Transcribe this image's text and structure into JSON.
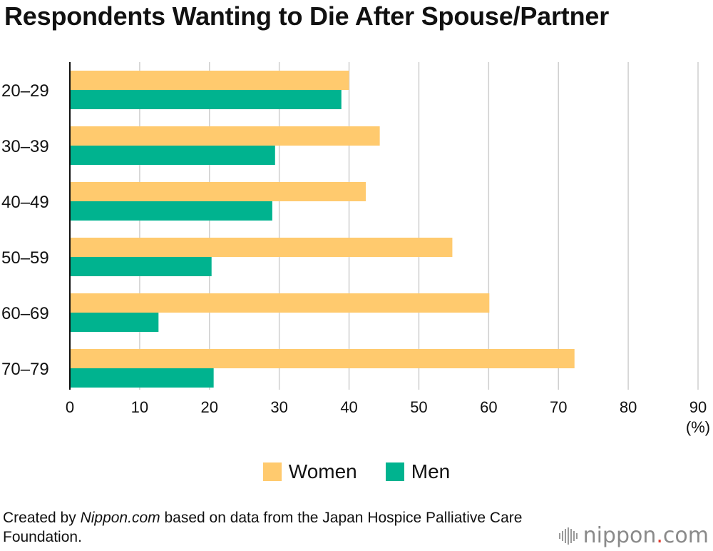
{
  "chart_data": {
    "type": "bar",
    "orientation": "horizontal",
    "title": "Respondents Wanting to Die After Spouse/Partner",
    "categories": [
      "20–29",
      "30–39",
      "40–49",
      "50–59",
      "60–69",
      "70–79"
    ],
    "series": [
      {
        "name": "Women",
        "color": "#ffca6e",
        "values": [
          40.0,
          44.4,
          42.4,
          54.8,
          60.1,
          72.3
        ]
      },
      {
        "name": "Men",
        "color": "#00b38f",
        "values": [
          38.9,
          29.4,
          29.0,
          20.3,
          12.7,
          20.6
        ]
      }
    ],
    "xlim": [
      0,
      90
    ],
    "xticks": [
      "0",
      "10",
      "20",
      "30",
      "40",
      "50",
      "60",
      "70",
      "80",
      "90"
    ],
    "unit_label": "(%)",
    "grid": true,
    "legend_position": "bottom"
  },
  "source": {
    "prefix": "Created by ",
    "brand": "Nippon.com",
    "suffix": " based on data from the Japan Hospice Palliative Care Foundation."
  },
  "logo": {
    "text_main": "nippon",
    "text_dot": ".",
    "text_tld": "com"
  }
}
